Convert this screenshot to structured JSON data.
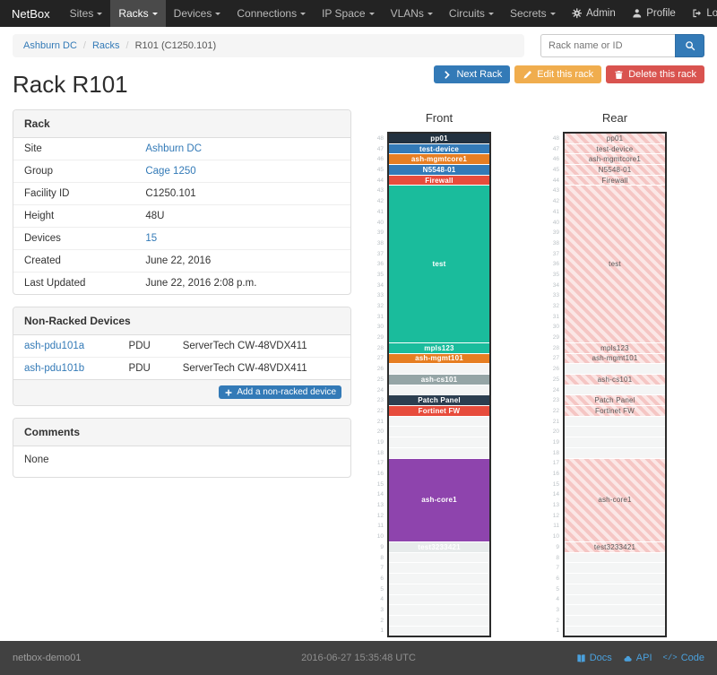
{
  "navbar": {
    "brand": "NetBox",
    "items": [
      {
        "label": "Sites",
        "active": false
      },
      {
        "label": "Racks",
        "active": true
      },
      {
        "label": "Devices",
        "active": false
      },
      {
        "label": "Connections",
        "active": false
      },
      {
        "label": "IP Space",
        "active": false
      },
      {
        "label": "VLANs",
        "active": false
      },
      {
        "label": "Circuits",
        "active": false
      },
      {
        "label": "Secrets",
        "active": false
      }
    ],
    "right_items": [
      {
        "label": "Admin",
        "icon": "gear-icon"
      },
      {
        "label": "Profile",
        "icon": "user-icon"
      },
      {
        "label": "Log out",
        "icon": "logout-icon"
      }
    ]
  },
  "breadcrumb": {
    "items": [
      {
        "label": "Ashburn DC",
        "link": true
      },
      {
        "label": "Racks",
        "link": true
      },
      {
        "label": "R101 (C1250.101)",
        "link": false
      }
    ]
  },
  "search": {
    "placeholder": "Rack name or ID",
    "icon": "search-icon"
  },
  "page": {
    "title": "Rack R101"
  },
  "actions": {
    "next_rack": {
      "label": "Next Rack",
      "icon": "chevron-right-icon"
    },
    "edit_rack": {
      "label": "Edit this rack",
      "icon": "pencil-icon"
    },
    "delete_rack": {
      "label": "Delete this rack",
      "icon": "trash-icon"
    }
  },
  "rack_panel": {
    "title": "Rack",
    "rows": [
      {
        "label": "Site",
        "value": "Ashburn DC",
        "link": true
      },
      {
        "label": "Group",
        "value": "Cage 1250",
        "link": true
      },
      {
        "label": "Facility ID",
        "value": "C1250.101",
        "link": false
      },
      {
        "label": "Height",
        "value": "48U",
        "link": false
      },
      {
        "label": "Devices",
        "value": "15",
        "link": true
      },
      {
        "label": "Created",
        "value": "June 22, 2016",
        "link": false
      },
      {
        "label": "Last Updated",
        "value": "June 22, 2016 2:08 p.m.",
        "link": false
      }
    ]
  },
  "nonracked_panel": {
    "title": "Non-Racked Devices",
    "rows": [
      {
        "name": "ash-pdu101a",
        "role": "PDU",
        "type": "ServerTech CW-48VDX411"
      },
      {
        "name": "ash-pdu101b",
        "role": "PDU",
        "type": "ServerTech CW-48VDX411"
      }
    ],
    "add_button": {
      "label": "Add a non-racked device",
      "icon": "plus-icon"
    }
  },
  "comments_panel": {
    "title": "Comments",
    "body": "None"
  },
  "rack_elevation": {
    "front_title": "Front",
    "rear_title": "Rear",
    "units_total": 48,
    "devices": [
      {
        "name": "pp01",
        "top_unit": 48,
        "height": 1,
        "color": "#22313f"
      },
      {
        "name": "test-device",
        "top_unit": 47,
        "height": 1,
        "color": "#337ab7"
      },
      {
        "name": "ash-mgmtcore1",
        "top_unit": 46,
        "height": 1,
        "color": "#e67e22"
      },
      {
        "name": "N5548-01",
        "top_unit": 45,
        "height": 1,
        "color": "#337ab7"
      },
      {
        "name": "Firewall",
        "top_unit": 44,
        "height": 1,
        "color": "#e74c3c"
      },
      {
        "name": "test",
        "top_unit": 43,
        "height": 15,
        "color": "#1abc9c"
      },
      {
        "name": "mpls123",
        "top_unit": 28,
        "height": 1,
        "color": "#1abc9c"
      },
      {
        "name": "ash-mgmt101",
        "top_unit": 27,
        "height": 1,
        "color": "#e67e22"
      },
      {
        "name": "ash-cs101",
        "top_unit": 25,
        "height": 1,
        "color": "#95a5a6"
      },
      {
        "name": "Patch Panel",
        "top_unit": 23,
        "height": 1,
        "color": "#2c3e50"
      },
      {
        "name": "Fortinet FW",
        "top_unit": 22,
        "height": 1,
        "color": "#e74c3c"
      },
      {
        "name": "ash-core1",
        "top_unit": 17,
        "height": 8,
        "color": "#8e44ad"
      },
      {
        "name": "test3233421",
        "top_unit": 9,
        "height": 1,
        "color": "#e7ebeb"
      }
    ]
  },
  "footer": {
    "hostname": "netbox-demo01",
    "timestamp": "2016-06-27 15:35:48 UTC",
    "links": [
      {
        "label": "Docs",
        "icon": "book-icon"
      },
      {
        "label": "API",
        "icon": "cloud-icon"
      },
      {
        "label": "Code",
        "icon": "code-icon"
      }
    ]
  },
  "colors": {
    "accent_primary": "#337ab7",
    "accent_warning": "#f0ad4e",
    "accent_danger": "#d9534f",
    "navbar_bg": "#232323",
    "footer_bg": "#414141"
  }
}
